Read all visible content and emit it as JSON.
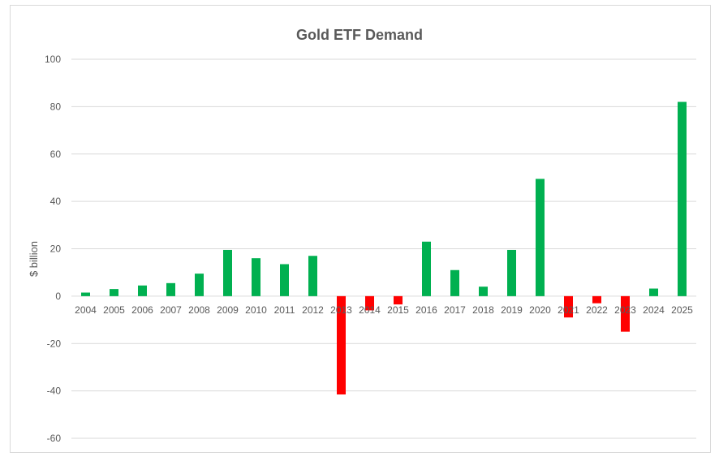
{
  "chart_data": {
    "type": "bar",
    "title": "Gold ETF Demand",
    "xlabel": "",
    "ylabel": "$ billion",
    "ylim": [
      -60,
      100
    ],
    "yticks": [
      -60,
      -40,
      -20,
      0,
      20,
      40,
      60,
      80,
      100
    ],
    "grid": true,
    "legend": "none",
    "categories": [
      "2004",
      "2005",
      "2006",
      "2007",
      "2008",
      "2009",
      "2010",
      "2011",
      "2012",
      "2013",
      "2014",
      "2015",
      "2016",
      "2017",
      "2018",
      "2019",
      "2020",
      "2021",
      "2022",
      "2023",
      "2024",
      "2025"
    ],
    "values": [
      1.5,
      3,
      4.5,
      5.5,
      9.5,
      19.5,
      16,
      13.5,
      17,
      -41.5,
      -6,
      -3.5,
      23,
      11,
      4,
      19.5,
      49.5,
      -9,
      -3,
      -15,
      3.2,
      82
    ],
    "colors": {
      "positive": "#00b050",
      "negative": "#ff0000",
      "grid": "#d9d9d9",
      "text": "#595959"
    }
  }
}
